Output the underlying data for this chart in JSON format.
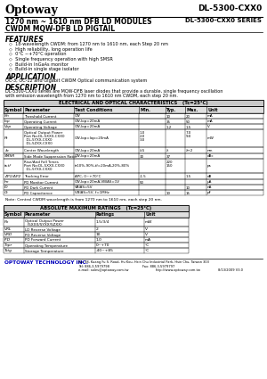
{
  "logo": "Optoway",
  "model": "DL-5300-CXX0",
  "title_line1": "1270 nm ~ 1610 nm DFB LD MODULES",
  "title_line2": "CWDM MQW-DFB LD PIGTAIL",
  "series": "DL-5300-CXX0 SERIES",
  "features_title": "FEATURES",
  "features": [
    "18-wavelength CWDM: from 1270 nm to 1610 nm, each Step 20 nm",
    "High reliability, long operation life",
    "0°C ~+70°C operation",
    "Single frequency operation with high SMSR",
    "Build-in InGaAs monitor",
    "Build-in single stage isolator"
  ],
  "application_title": "APPLICATION",
  "application": "OC-3, OC-12 and Gigabit CWDM Optical communication system",
  "description_title": "DESCRIPTION",
  "description": "DL-5300-CXX0 series are MQW-DFB laser diodes that provide a durable, single frequency oscillation\nwith emission wavelength from 1270 nm to 1610 nm CWDM, each step 20 nm.",
  "elec_table_title": "ELECTRICAL AND OPTICAL CHARACTERISTICS   (Tc=25°C)",
  "elec_headers": [
    "Symbol",
    "Parameter",
    "Test Conditions",
    "Min.",
    "Typ.",
    "Max.",
    "Unit"
  ],
  "elec_rows": [
    [
      "Ith",
      "Threshold Current",
      "CW",
      "",
      "10",
      "20",
      "mA"
    ],
    [
      "Iop",
      "Operating Current",
      "CW,Iop=20mA",
      "",
      "35",
      "50",
      "mA"
    ],
    [
      "Vop",
      "Operating Voltage",
      "CW,Iop=20mA",
      "",
      "1.2",
      "1.5",
      "V"
    ],
    [
      "Pt",
      "Optical Output Power\nPart No:DL-5XXX-CXX0\n  DL-5YXX-CXX0\n  DL-5ZXX-CXX0",
      "CW,Iop=Iop=20mA",
      "1.0\n2.0\n3.0",
      "",
      "7.0\n9.0\n",
      "mW"
    ],
    [
      "λc",
      "Center Wavelength",
      "CW,Iop=20mA",
      "λ-5",
      "λ",
      "λ+2",
      "nm"
    ],
    [
      "SMSR",
      "Side Mode Suppression Ratio",
      "CW,Iop=20mA",
      "30",
      "37",
      "",
      "dBc"
    ],
    [
      "tr,tf",
      "Rise/And Fall Times\nPart No:DL-5XXX-CXX0\n  DL-5YXX-CXX0",
      "tr10%-90%,tf=20mA,20%-80%",
      "",
      "220\n150",
      "",
      "ps"
    ],
    [
      "ΔP1/ΔP2",
      "Tracking Error",
      "APC, 0~+70°C",
      "-1.5",
      "",
      "1.5",
      "dB"
    ],
    [
      "Im",
      "PD Monitor Current",
      "CW,Iop=20mA,VBIAS=1V",
      "50",
      "",
      "",
      "μA"
    ],
    [
      "ID",
      "PD Dark Current",
      "VBIAS=5V",
      "",
      "",
      "10",
      "nA"
    ],
    [
      "Ct",
      "PD Capacitance",
      "VBIAS=5V, f=1MHz",
      "",
      "10",
      "15",
      "pF"
    ]
  ],
  "note": "Note: Central CWDM wavelength is from 1270 nm to 1610 nm, each step 20 nm.",
  "abs_table_title": "ABSOLUTE MAXIMUM RATINGS   (Tc=25°C)",
  "abs_headers": [
    "Symbol",
    "Parameter",
    "Ratings",
    "Unit"
  ],
  "abs_rows": [
    [
      "Po",
      "Optical Output Power\n  (5XXX/5YXX/5ZXX)",
      "1.5/3/4",
      "mW"
    ],
    [
      "VRL",
      "LD Reverse Voltage",
      "2",
      "V"
    ],
    [
      "VRD",
      "PD Reverse Voltage",
      "10",
      "V"
    ],
    [
      "IFD",
      "PD Forward Current",
      "1.0",
      "mA"
    ],
    [
      "Topr",
      "Operating Temperature",
      "0~+70",
      "°C"
    ],
    [
      "Tstg",
      "Storage Temperature",
      "-40~+85",
      "°C"
    ]
  ],
  "footer_company": "OPTOWAY TECHNOLOGY INC.",
  "footer_address": "No. 38, Kuang Fu S. Road, Hu Kou, Hsin Chu Industrial Park, Hsin Chu, Taiwan 303",
  "footer_tel": "Tel: 886-3-5979798",
  "footer_fax": "Fax: 886-3-5979797",
  "footer_email": "e-mail: sales@optoway.com.tw",
  "footer_web": "http://www.optoway.com.tw",
  "footer_date": "8/13/2009 V3.0",
  "bg_color": "#ffffff",
  "text_color": "#000000",
  "table_header_bg": "#c8c8c8",
  "table_border": "#000000",
  "logo_color": "#000000",
  "highlight_red": "#cc0000",
  "highlight_blue": "#0000bb"
}
